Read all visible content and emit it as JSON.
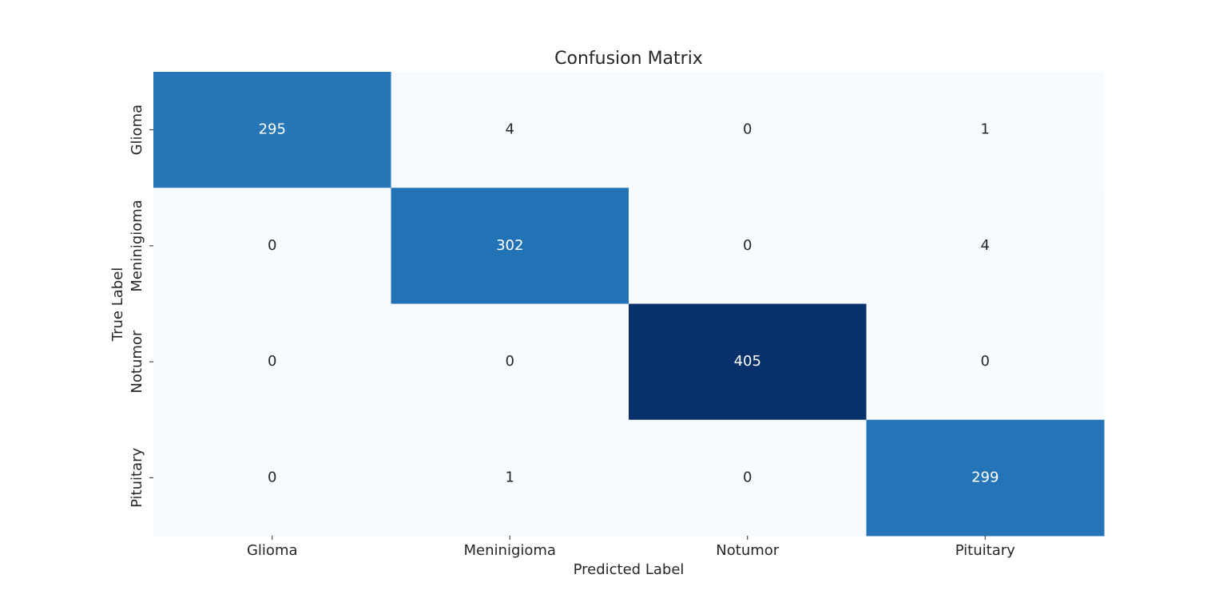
{
  "chart_data": {
    "type": "heatmap",
    "title": "Confusion Matrix",
    "xlabel": "Predicted Label",
    "ylabel": "True Label",
    "x_categories": [
      "Glioma",
      "Meninigioma",
      "Notumor",
      "Pituitary"
    ],
    "y_categories": [
      "Glioma",
      "Meninigioma",
      "Notumor",
      "Pituitary"
    ],
    "values": [
      [
        295,
        4,
        0,
        1
      ],
      [
        0,
        302,
        0,
        4
      ],
      [
        0,
        0,
        405,
        0
      ],
      [
        0,
        1,
        0,
        299
      ]
    ],
    "colormap": "Blues",
    "colorbar": false,
    "annotations": true
  }
}
